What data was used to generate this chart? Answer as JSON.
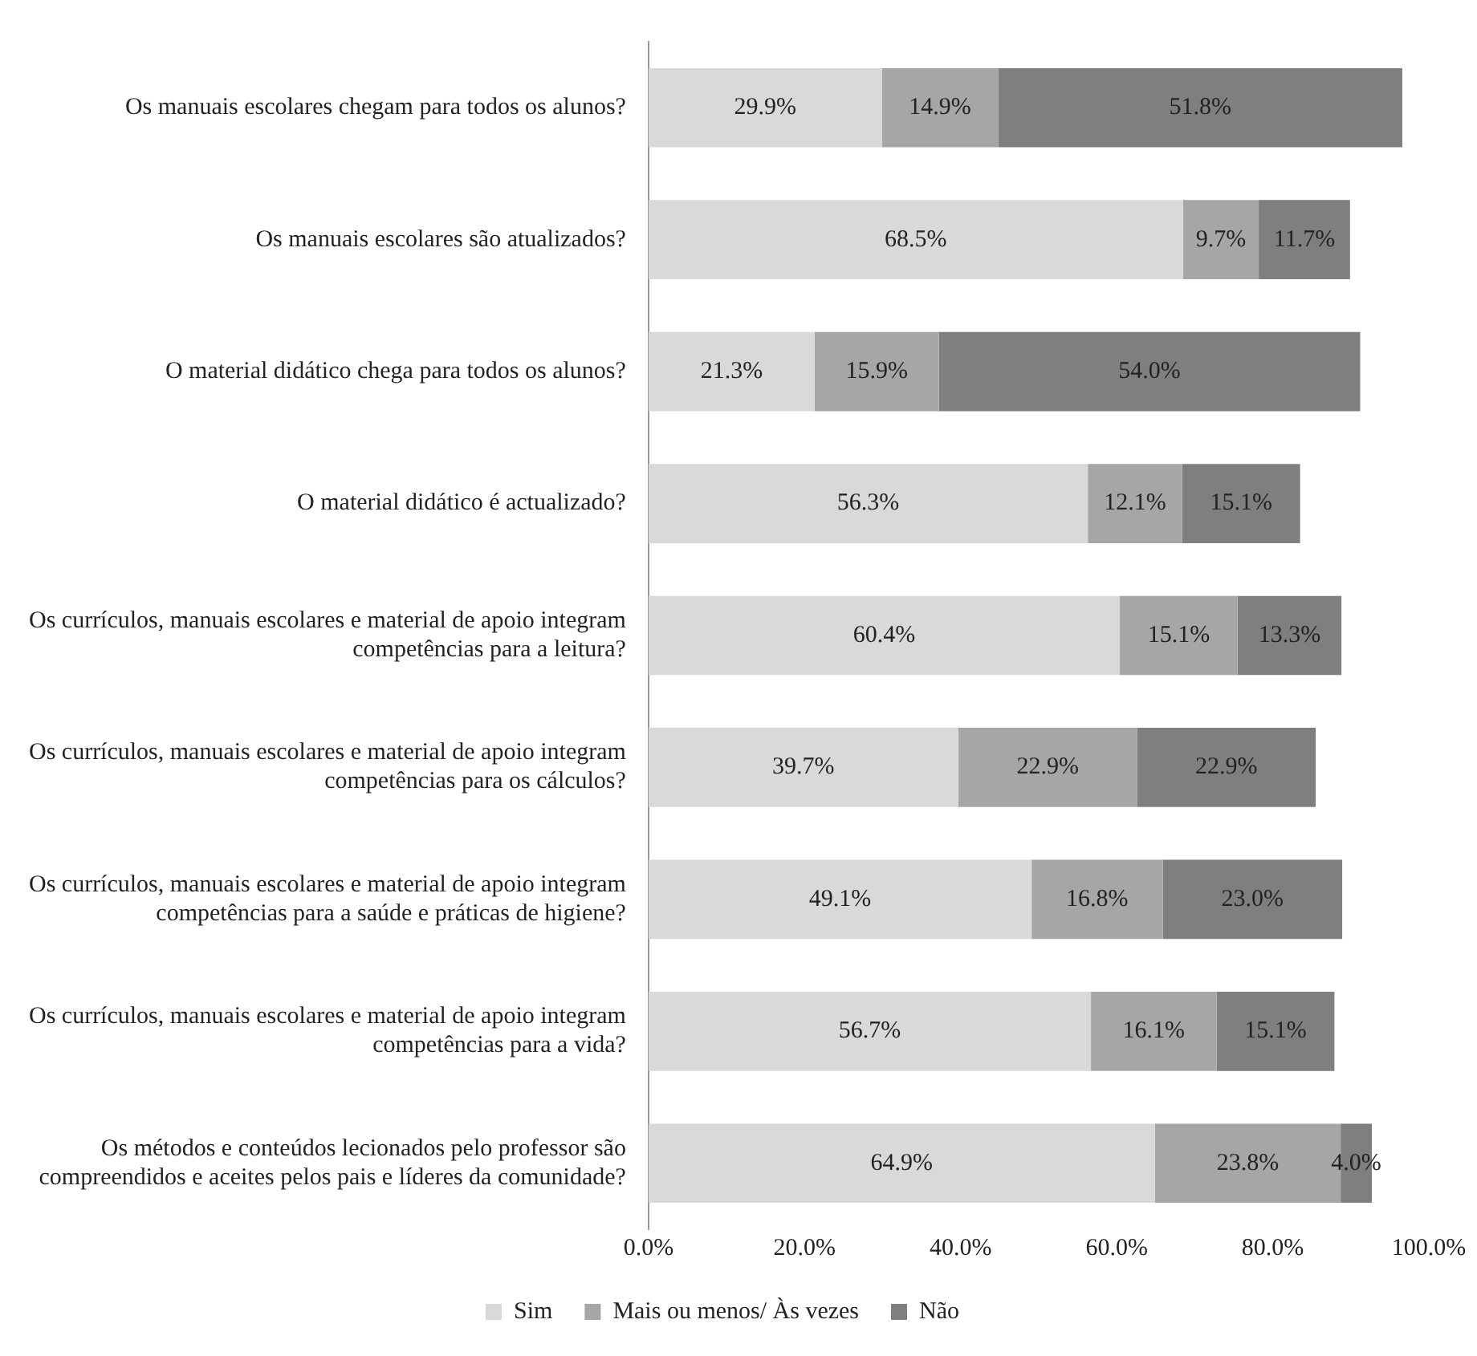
{
  "chart_data": {
    "type": "bar",
    "orientation": "horizontal",
    "stacked": true,
    "categories": [
      "Os manuais escolares chegam para todos os alunos?",
      "Os manuais escolares são atualizados?",
      "O material didático chega para todos os alunos?",
      "O material didático é actualizado?",
      "Os currículos, manuais escolares e material de apoio integram competências para a leitura?",
      "Os currículos, manuais escolares e material de apoio integram competências para os cálculos?",
      "Os currículos, manuais escolares e material de apoio integram competências para a saúde e práticas de higiene?",
      "Os currículos, manuais escolares e material de apoio integram competências para a vida?",
      "Os métodos e conteúdos lecionados pelo professor são compreendidos e aceites pelos pais e líderes da comunidade?"
    ],
    "series": [
      {
        "name": "Sim",
        "color": "#d9d9d9",
        "values": [
          29.9,
          68.5,
          21.3,
          56.3,
          60.4,
          39.7,
          49.1,
          56.7,
          64.9
        ],
        "value_labels": [
          "29.9%",
          "68.5%",
          "21.3%",
          "56.3%",
          "60.4%",
          "39.7%",
          "49.1%",
          "56.7%",
          "64.9%"
        ]
      },
      {
        "name": "Mais ou menos/ Às vezes",
        "color": "#a6a6a6",
        "values": [
          14.9,
          9.7,
          15.9,
          12.1,
          15.1,
          22.9,
          16.8,
          16.1,
          23.8
        ],
        "value_labels": [
          "14.9%",
          "9.7%",
          "15.9%",
          "12.1%",
          "15.1%",
          "22.9%",
          "16.8%",
          "16.1%",
          "23.8%"
        ]
      },
      {
        "name": "Não",
        "color": "#7f7f7f",
        "values": [
          51.8,
          11.7,
          54.0,
          15.1,
          13.3,
          22.9,
          23.0,
          15.1,
          4.0
        ],
        "value_labels": [
          "51.8%",
          "11.7%",
          "54.0%",
          "15.1%",
          "13.3%",
          "22.9%",
          "23.0%",
          "15.1%",
          "4.0%"
        ]
      }
    ],
    "xlim": [
      0,
      100
    ],
    "xticks": [
      {
        "value": 0,
        "label": "0.0%"
      },
      {
        "value": 20,
        "label": "20.0%"
      },
      {
        "value": 40,
        "label": "40.0%"
      },
      {
        "value": 60,
        "label": "60.0%"
      },
      {
        "value": 80,
        "label": "80.0%"
      },
      {
        "value": 100,
        "label": "100.0%"
      }
    ],
    "grid": false,
    "legend": "bottom"
  }
}
